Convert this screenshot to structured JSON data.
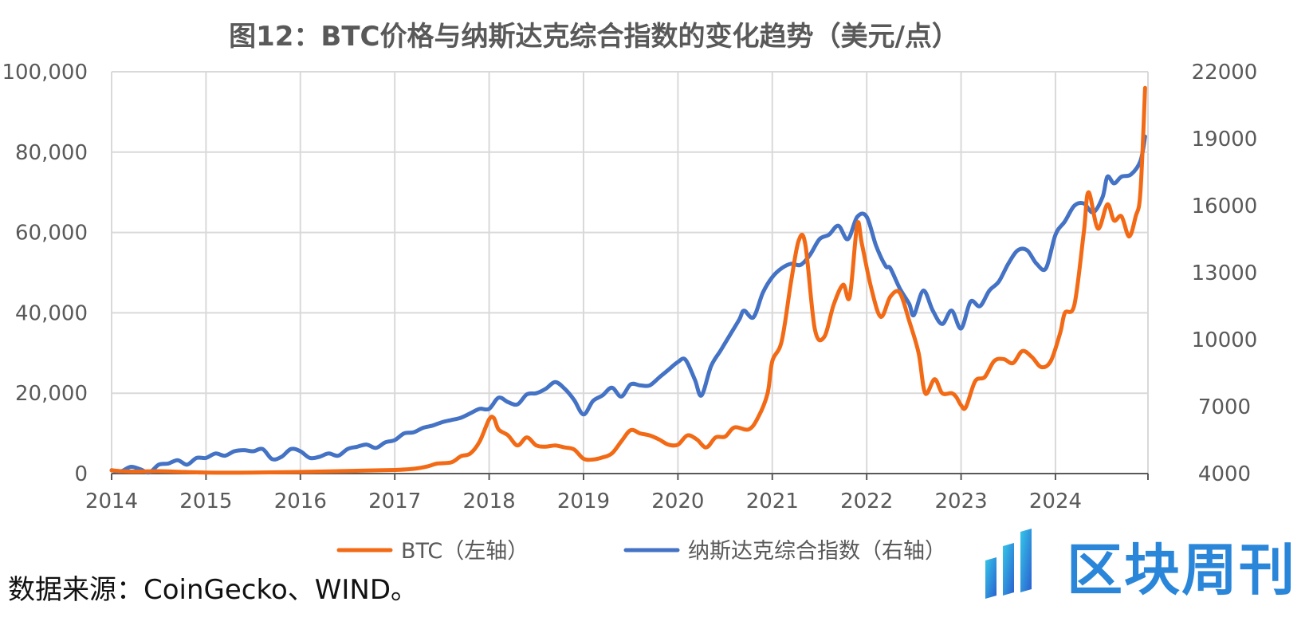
{
  "page": {
    "title": "图12：BTC价格与纳斯达克综合指数的变化趋势（美元/点）",
    "source": "数据来源：CoinGecko、WIND。",
    "watermark_text": "区块周刊"
  },
  "chart_data": {
    "type": "line",
    "title": "图12：BTC价格与纳斯达克综合指数的变化趋势（美元/点）",
    "x_ticks": [
      "2014",
      "2015",
      "2016",
      "2017",
      "2018",
      "2019",
      "2020",
      "2021",
      "2022",
      "2023",
      "2024"
    ],
    "xlim": [
      2014,
      2024.98
    ],
    "left_axis": {
      "ylim": [
        0,
        100000
      ],
      "ticks": [
        "0",
        "20,000",
        "40,000",
        "60,000",
        "80,000",
        "100,000"
      ]
    },
    "right_axis": {
      "ylim": [
        4000,
        22000
      ],
      "ticks": [
        "4000",
        "7000",
        "10000",
        "13000",
        "16000",
        "19000",
        "22000"
      ]
    },
    "grid": true,
    "legend_position": "bottom",
    "series": [
      {
        "name": "BTC（左轴）",
        "axis": "left",
        "color": "#f26a15",
        "points": [
          [
            2014.0,
            800
          ],
          [
            2014.1,
            600
          ],
          [
            2014.2,
            500
          ],
          [
            2014.3,
            500
          ],
          [
            2014.5,
            600
          ],
          [
            2014.7,
            450
          ],
          [
            2015.0,
            250
          ],
          [
            2015.5,
            250
          ],
          [
            2016.0,
            400
          ],
          [
            2016.5,
            650
          ],
          [
            2017.0,
            900
          ],
          [
            2017.2,
            1200
          ],
          [
            2017.35,
            1800
          ],
          [
            2017.45,
            2500
          ],
          [
            2017.6,
            2800
          ],
          [
            2017.7,
            4300
          ],
          [
            2017.8,
            5000
          ],
          [
            2017.9,
            8000
          ],
          [
            2018.0,
            13500
          ],
          [
            2018.05,
            13800
          ],
          [
            2018.1,
            11000
          ],
          [
            2018.2,
            9500
          ],
          [
            2018.3,
            7000
          ],
          [
            2018.4,
            9000
          ],
          [
            2018.5,
            7000
          ],
          [
            2018.6,
            6700
          ],
          [
            2018.7,
            7000
          ],
          [
            2018.8,
            6500
          ],
          [
            2018.9,
            6000
          ],
          [
            2019.0,
            3700
          ],
          [
            2019.1,
            3500
          ],
          [
            2019.2,
            4000
          ],
          [
            2019.3,
            5000
          ],
          [
            2019.4,
            8000
          ],
          [
            2019.5,
            10800
          ],
          [
            2019.6,
            10000
          ],
          [
            2019.7,
            9500
          ],
          [
            2019.8,
            8500
          ],
          [
            2019.9,
            7200
          ],
          [
            2020.0,
            7200
          ],
          [
            2020.1,
            9500
          ],
          [
            2020.2,
            8500
          ],
          [
            2020.3,
            6500
          ],
          [
            2020.4,
            9000
          ],
          [
            2020.5,
            9200
          ],
          [
            2020.6,
            11500
          ],
          [
            2020.75,
            11000
          ],
          [
            2020.85,
            14000
          ],
          [
            2020.95,
            20000
          ],
          [
            2021.0,
            28000
          ],
          [
            2021.1,
            33000
          ],
          [
            2021.2,
            48000
          ],
          [
            2021.28,
            58000
          ],
          [
            2021.35,
            57000
          ],
          [
            2021.45,
            36000
          ],
          [
            2021.55,
            34000
          ],
          [
            2021.65,
            42000
          ],
          [
            2021.75,
            47000
          ],
          [
            2021.82,
            44000
          ],
          [
            2021.9,
            62000
          ],
          [
            2021.95,
            57000
          ],
          [
            2022.05,
            46000
          ],
          [
            2022.15,
            39000
          ],
          [
            2022.25,
            44000
          ],
          [
            2022.35,
            45000
          ],
          [
            2022.45,
            38000
          ],
          [
            2022.55,
            30000
          ],
          [
            2022.62,
            20000
          ],
          [
            2022.72,
            23500
          ],
          [
            2022.8,
            20000
          ],
          [
            2022.9,
            20000
          ],
          [
            2022.95,
            19000
          ],
          [
            2023.0,
            17000
          ],
          [
            2023.05,
            16500
          ],
          [
            2023.15,
            23000
          ],
          [
            2023.25,
            24000
          ],
          [
            2023.35,
            28000
          ],
          [
            2023.45,
            28500
          ],
          [
            2023.55,
            27500
          ],
          [
            2023.65,
            30500
          ],
          [
            2023.75,
            29000
          ],
          [
            2023.85,
            26500
          ],
          [
            2023.95,
            28000
          ],
          [
            2024.05,
            35000
          ],
          [
            2024.1,
            40000
          ],
          [
            2024.2,
            42000
          ],
          [
            2024.3,
            60000
          ],
          [
            2024.35,
            70000
          ],
          [
            2024.45,
            61000
          ],
          [
            2024.55,
            67000
          ],
          [
            2024.62,
            63000
          ],
          [
            2024.7,
            64000
          ],
          [
            2024.78,
            59000
          ],
          [
            2024.85,
            64000
          ],
          [
            2024.9,
            70000
          ],
          [
            2024.95,
            96000
          ]
        ]
      },
      {
        "name": "纳斯达克综合指数（右轴）",
        "axis": "right",
        "color": "#4472c4",
        "points": [
          [
            2014.0,
            4150
          ],
          [
            2014.1,
            4100
          ],
          [
            2014.2,
            4300
          ],
          [
            2014.3,
            4200
          ],
          [
            2014.4,
            4050
          ],
          [
            2014.5,
            4400
          ],
          [
            2014.6,
            4450
          ],
          [
            2014.7,
            4600
          ],
          [
            2014.8,
            4400
          ],
          [
            2014.9,
            4700
          ],
          [
            2015.0,
            4700
          ],
          [
            2015.1,
            4900
          ],
          [
            2015.2,
            4800
          ],
          [
            2015.3,
            5000
          ],
          [
            2015.4,
            5050
          ],
          [
            2015.5,
            5000
          ],
          [
            2015.6,
            5100
          ],
          [
            2015.7,
            4650
          ],
          [
            2015.8,
            4750
          ],
          [
            2015.9,
            5100
          ],
          [
            2016.0,
            5000
          ],
          [
            2016.1,
            4700
          ],
          [
            2016.2,
            4750
          ],
          [
            2016.3,
            4900
          ],
          [
            2016.4,
            4800
          ],
          [
            2016.5,
            5100
          ],
          [
            2016.6,
            5200
          ],
          [
            2016.7,
            5300
          ],
          [
            2016.8,
            5150
          ],
          [
            2016.9,
            5400
          ],
          [
            2017.0,
            5500
          ],
          [
            2017.1,
            5800
          ],
          [
            2017.2,
            5850
          ],
          [
            2017.3,
            6050
          ],
          [
            2017.4,
            6150
          ],
          [
            2017.5,
            6300
          ],
          [
            2017.6,
            6400
          ],
          [
            2017.7,
            6500
          ],
          [
            2017.8,
            6700
          ],
          [
            2017.9,
            6900
          ],
          [
            2018.0,
            6900
          ],
          [
            2018.1,
            7400
          ],
          [
            2018.2,
            7200
          ],
          [
            2018.3,
            7100
          ],
          [
            2018.4,
            7550
          ],
          [
            2018.5,
            7600
          ],
          [
            2018.6,
            7800
          ],
          [
            2018.7,
            8100
          ],
          [
            2018.8,
            7800
          ],
          [
            2018.9,
            7300
          ],
          [
            2019.0,
            6650
          ],
          [
            2019.1,
            7250
          ],
          [
            2019.2,
            7500
          ],
          [
            2019.3,
            7850
          ],
          [
            2019.4,
            7450
          ],
          [
            2019.5,
            8000
          ],
          [
            2019.6,
            7950
          ],
          [
            2019.7,
            7950
          ],
          [
            2019.8,
            8300
          ],
          [
            2019.9,
            8650
          ],
          [
            2020.0,
            9000
          ],
          [
            2020.08,
            9100
          ],
          [
            2020.18,
            8200
          ],
          [
            2020.25,
            7500
          ],
          [
            2020.35,
            8800
          ],
          [
            2020.45,
            9500
          ],
          [
            2020.55,
            10200
          ],
          [
            2020.65,
            10900
          ],
          [
            2020.7,
            11300
          ],
          [
            2020.8,
            11000
          ],
          [
            2020.9,
            12100
          ],
          [
            2021.0,
            12800
          ],
          [
            2021.1,
            13200
          ],
          [
            2021.2,
            13400
          ],
          [
            2021.3,
            13350
          ],
          [
            2021.4,
            13800
          ],
          [
            2021.5,
            14500
          ],
          [
            2021.6,
            14700
          ],
          [
            2021.7,
            15100
          ],
          [
            2021.8,
            14500
          ],
          [
            2021.9,
            15500
          ],
          [
            2022.0,
            15500
          ],
          [
            2022.1,
            14200
          ],
          [
            2022.2,
            13300
          ],
          [
            2022.25,
            13200
          ],
          [
            2022.35,
            12300
          ],
          [
            2022.45,
            11600
          ],
          [
            2022.5,
            11100
          ],
          [
            2022.6,
            12200
          ],
          [
            2022.7,
            11300
          ],
          [
            2022.8,
            10700
          ],
          [
            2022.9,
            11300
          ],
          [
            2023.0,
            10500
          ],
          [
            2023.1,
            11700
          ],
          [
            2023.2,
            11500
          ],
          [
            2023.3,
            12200
          ],
          [
            2023.4,
            12600
          ],
          [
            2023.5,
            13400
          ],
          [
            2023.6,
            14000
          ],
          [
            2023.7,
            14000
          ],
          [
            2023.8,
            13400
          ],
          [
            2023.9,
            13200
          ],
          [
            2024.0,
            14700
          ],
          [
            2024.1,
            15300
          ],
          [
            2024.2,
            16000
          ],
          [
            2024.3,
            16100
          ],
          [
            2024.4,
            15700
          ],
          [
            2024.5,
            16400
          ],
          [
            2024.55,
            17300
          ],
          [
            2024.62,
            17000
          ],
          [
            2024.7,
            17300
          ],
          [
            2024.8,
            17400
          ],
          [
            2024.9,
            18000
          ],
          [
            2024.95,
            19100
          ]
        ]
      }
    ]
  }
}
